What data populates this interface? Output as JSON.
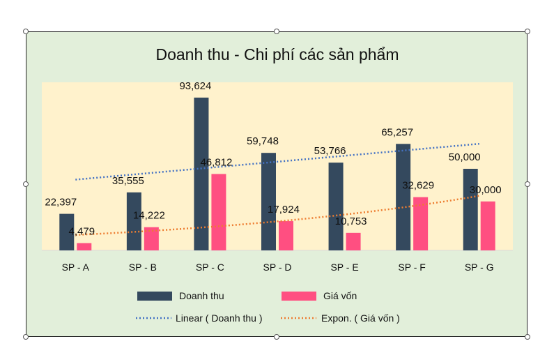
{
  "chart_data": {
    "type": "bar",
    "title": "Doanh thu - Chi phí các sản phẩm",
    "categories": [
      "SP - A",
      "SP - B",
      "SP - C",
      "SP - D",
      "SP - E",
      "SP - F",
      "SP - G"
    ],
    "series": [
      {
        "name": "Doanh thu",
        "values": [
          22397,
          35555,
          93624,
          59748,
          53766,
          65257,
          50000
        ],
        "labels": [
          "22,397",
          "35,555",
          "93,624",
          "59,748",
          "53,766",
          "65,257",
          "50,000"
        ],
        "color": "#34495e"
      },
      {
        "name": "Giá vốn",
        "values": [
          4479,
          14222,
          46812,
          17924,
          10753,
          32629,
          30000
        ],
        "labels": [
          "4,479",
          "14,222",
          "46,812",
          "17,924",
          "10,753",
          "32,629",
          "30,000"
        ],
        "color": "#ff4f81"
      }
    ],
    "trendlines": [
      {
        "name": "Linear ( Doanh thu )",
        "type": "linear",
        "series": "Doanh thu",
        "color": "#4472c4"
      },
      {
        "name": "Expon. ( Giá vốn )",
        "type": "exponential",
        "series": "Giá vốn",
        "color": "#ed7d31"
      }
    ],
    "ylim": [
      0,
      100000
    ],
    "grid": false,
    "legend_position": "bottom",
    "plot_background": "#fff2cc",
    "chart_background": "#e2efda"
  }
}
